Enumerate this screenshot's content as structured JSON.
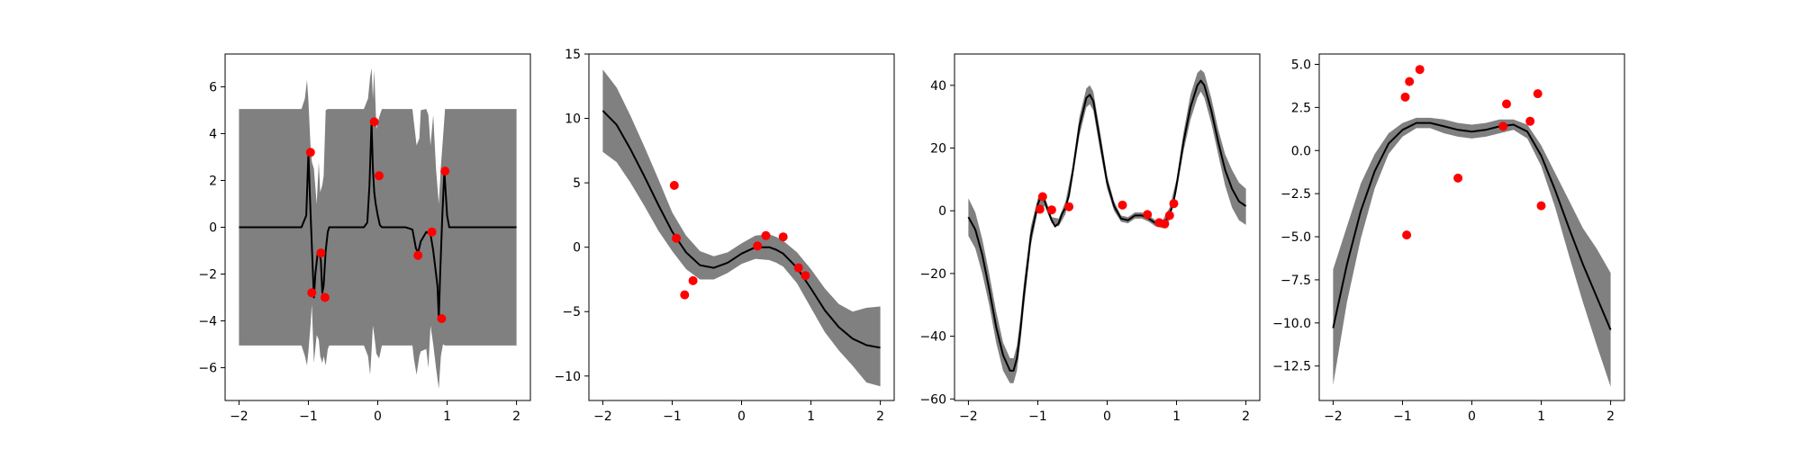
{
  "chart_data": [
    {
      "type": "line",
      "title": "",
      "xlabel": "",
      "ylabel": "",
      "xlim": [
        -2.2,
        2.2
      ],
      "ylim": [
        -7.4,
        7.4
      ],
      "xticks": [
        -2,
        -1,
        0,
        1,
        2
      ],
      "yticks": [
        -6,
        -4,
        -2,
        0,
        2,
        4,
        6
      ],
      "xtick_labels": [
        "−2",
        "−1",
        "0",
        "1",
        "2"
      ],
      "ytick_labels": [
        "−6",
        "−4",
        "−2",
        "0",
        "2",
        "4",
        "6"
      ],
      "grid": false,
      "colors": {
        "mean": "#000000",
        "band": "#808080",
        "points": "#ff0000"
      },
      "mean": {
        "x": [
          -2.0,
          -1.1,
          -1.03,
          -1.0,
          -0.98,
          -0.95,
          -0.92,
          -0.9,
          -0.87,
          -0.85,
          -0.82,
          -0.8,
          -0.78,
          -0.75,
          -0.72,
          -0.7,
          -0.68,
          -0.65,
          -0.6,
          -0.2,
          -0.15,
          -0.12,
          -0.09,
          -0.07,
          -0.05,
          -0.03,
          0.0,
          0.03,
          0.06,
          0.1,
          0.2,
          0.4,
          0.5,
          0.55,
          0.58,
          0.62,
          0.7,
          0.76,
          0.8,
          0.86,
          0.88,
          0.9,
          0.93,
          0.96,
          1.0,
          1.03,
          1.06,
          1.1,
          1.2,
          2.0
        ],
        "y": [
          0.0,
          0.0,
          0.5,
          3.2,
          1.5,
          -0.8,
          -3.0,
          -2.0,
          -1.2,
          -1.0,
          -1.4,
          -2.8,
          -2.5,
          -1.0,
          -0.2,
          0.0,
          0.0,
          0.0,
          0.0,
          0.0,
          0.2,
          1.8,
          4.5,
          2.5,
          1.5,
          1.0,
          0.5,
          0.1,
          0.0,
          0.0,
          0.0,
          0.0,
          -0.1,
          -0.9,
          -1.1,
          -0.6,
          -0.2,
          -0.3,
          -1.0,
          -2.5,
          -3.9,
          -2.0,
          0.5,
          2.4,
          0.5,
          0.0,
          0.0,
          0.0,
          0.0,
          0.0
        ]
      },
      "band": {
        "x": [
          -2.0,
          -1.1,
          -1.05,
          -1.02,
          -1.0,
          -0.97,
          -0.95,
          -0.92,
          -0.88,
          -0.85,
          -0.83,
          -0.8,
          -0.78,
          -0.75,
          -0.72,
          -0.7,
          -0.67,
          -0.6,
          -0.2,
          -0.14,
          -0.11,
          -0.09,
          -0.07,
          -0.05,
          -0.02,
          0.02,
          0.06,
          0.1,
          0.2,
          0.4,
          0.5,
          0.52,
          0.56,
          0.6,
          0.62,
          0.7,
          0.73,
          0.76,
          0.8,
          0.84,
          0.88,
          0.91,
          0.94,
          0.97,
          1.0,
          1.04,
          1.1,
          2.0
        ],
        "upper": [
          5.05,
          5.05,
          5.5,
          6.3,
          5.4,
          3.5,
          2.8,
          2.5,
          1.0,
          2.8,
          1.5,
          1.8,
          2.2,
          5.0,
          5.05,
          5.05,
          5.05,
          5.05,
          5.05,
          5.5,
          6.4,
          6.8,
          5.5,
          6.7,
          4.2,
          4.7,
          5.05,
          5.05,
          5.05,
          5.05,
          5.05,
          4.5,
          3.5,
          3.8,
          5.0,
          5.05,
          4.8,
          3.5,
          4.8,
          2.5,
          1.0,
          2.6,
          3.8,
          5.05,
          5.05,
          5.05,
          5.05,
          5.05
        ],
        "lower": [
          -5.05,
          -5.05,
          -5.5,
          -5.9,
          -5.3,
          -4.2,
          -3.3,
          -5.8,
          -4.6,
          -4.8,
          -5.5,
          -5.8,
          -5.5,
          -5.9,
          -5.2,
          -5.05,
          -5.05,
          -5.05,
          -5.05,
          -5.5,
          -6.3,
          -5.3,
          -4.2,
          -4.6,
          -5.4,
          -5.6,
          -5.05,
          -5.05,
          -5.05,
          -5.05,
          -5.05,
          -5.6,
          -6.3,
          -5.5,
          -5.3,
          -5.2,
          -6.0,
          -4.2,
          -5.0,
          -6.0,
          -6.9,
          -5.5,
          -5.0,
          -5.05,
          -5.05,
          -5.05,
          -5.05,
          -5.05
        ]
      },
      "points": {
        "x": [
          -0.97,
          -0.95,
          -0.82,
          -0.76,
          -0.05,
          0.02,
          0.58,
          0.78,
          0.92,
          0.97
        ],
        "y": [
          3.2,
          -2.8,
          -1.1,
          -3.0,
          4.5,
          2.2,
          -1.2,
          -0.2,
          -3.9,
          2.4
        ]
      }
    },
    {
      "type": "line",
      "title": "",
      "xlabel": "",
      "ylabel": "",
      "xlim": [
        -2.2,
        2.2
      ],
      "ylim": [
        -11.9,
        15.0
      ],
      "xticks": [
        -2,
        -1,
        0,
        1,
        2
      ],
      "yticks": [
        -10,
        -5,
        0,
        5,
        10,
        15
      ],
      "xtick_labels": [
        "−2",
        "−1",
        "0",
        "1",
        "2"
      ],
      "ytick_labels": [
        "−10",
        "−5",
        "0",
        "5",
        "10",
        "15"
      ],
      "grid": false,
      "colors": {
        "mean": "#000000",
        "band": "#808080",
        "points": "#ff0000"
      },
      "mean": {
        "x": [
          -2.0,
          -1.8,
          -1.6,
          -1.4,
          -1.2,
          -1.0,
          -0.8,
          -0.6,
          -0.4,
          -0.2,
          0.0,
          0.2,
          0.4,
          0.5,
          0.6,
          0.8,
          1.0,
          1.2,
          1.4,
          1.6,
          1.8,
          2.0
        ],
        "y": [
          10.6,
          9.5,
          7.6,
          5.5,
          3.3,
          1.2,
          -0.4,
          -1.4,
          -1.6,
          -1.2,
          -0.5,
          0.0,
          0.0,
          -0.2,
          -0.5,
          -1.6,
          -3.2,
          -4.9,
          -6.2,
          -7.1,
          -7.6,
          -7.8
        ]
      },
      "band": {
        "x": [
          -2.0,
          -1.8,
          -1.6,
          -1.4,
          -1.2,
          -1.0,
          -0.8,
          -0.6,
          -0.4,
          -0.2,
          0.0,
          0.2,
          0.4,
          0.5,
          0.6,
          0.8,
          1.0,
          1.2,
          1.4,
          1.6,
          1.8,
          2.0
        ],
        "upper": [
          13.8,
          12.4,
          10.2,
          7.8,
          5.3,
          2.7,
          0.9,
          -0.3,
          -0.7,
          -0.4,
          0.3,
          0.9,
          1.0,
          0.8,
          0.5,
          -0.4,
          -1.7,
          -3.2,
          -4.4,
          -5.0,
          -4.7,
          -4.6
        ],
        "lower": [
          7.4,
          6.6,
          5.0,
          3.2,
          1.3,
          -0.3,
          -1.7,
          -2.5,
          -2.5,
          -2.0,
          -1.3,
          -0.9,
          -1.0,
          -1.2,
          -1.5,
          -2.8,
          -4.7,
          -6.6,
          -8.0,
          -9.2,
          -10.5,
          -10.8
        ]
      },
      "points": {
        "x": [
          -0.97,
          -0.94,
          -0.82,
          -0.7,
          0.23,
          0.35,
          0.6,
          0.82,
          0.92
        ],
        "y": [
          4.8,
          0.7,
          -3.7,
          -2.6,
          0.1,
          0.9,
          0.8,
          -1.6,
          -2.2
        ]
      }
    },
    {
      "type": "line",
      "title": "",
      "xlabel": "",
      "ylabel": "",
      "xlim": [
        -2.2,
        2.2
      ],
      "ylim": [
        -60.5,
        50.0
      ],
      "xticks": [
        -2,
        -1,
        0,
        1,
        2
      ],
      "yticks": [
        -60,
        -40,
        -20,
        0,
        20,
        40
      ],
      "xtick_labels": [
        "−2",
        "−1",
        "0",
        "1",
        "2"
      ],
      "ytick_labels": [
        "−60",
        "−40",
        "−20",
        "0",
        "20",
        "40"
      ],
      "grid": false,
      "colors": {
        "mean": "#000000",
        "band": "#808080",
        "points": "#ff0000"
      },
      "mean": {
        "x": [
          -2.0,
          -1.9,
          -1.8,
          -1.7,
          -1.6,
          -1.5,
          -1.4,
          -1.35,
          -1.3,
          -1.25,
          -1.2,
          -1.1,
          -1.0,
          -0.95,
          -0.9,
          -0.85,
          -0.8,
          -0.75,
          -0.7,
          -0.65,
          -0.6,
          -0.55,
          -0.5,
          -0.4,
          -0.3,
          -0.25,
          -0.2,
          -0.1,
          0.0,
          0.1,
          0.2,
          0.3,
          0.4,
          0.5,
          0.6,
          0.7,
          0.8,
          0.85,
          0.9,
          0.95,
          1.0,
          1.1,
          1.2,
          1.3,
          1.35,
          1.4,
          1.5,
          1.6,
          1.7,
          1.8,
          1.9,
          2.0
        ],
        "y": [
          -2.0,
          -6.0,
          -14.0,
          -25.0,
          -37.0,
          -46.0,
          -51.0,
          -51.0,
          -47.0,
          -38.0,
          -27.0,
          -8.0,
          2.0,
          5.0,
          3.0,
          0.0,
          -3.0,
          -5.0,
          -4.0,
          -1.0,
          1.0,
          5.0,
          12.0,
          27.0,
          36.0,
          37.0,
          35.0,
          22.0,
          9.0,
          1.5,
          -2.5,
          -3.0,
          -1.5,
          -1.5,
          -2.5,
          -4.0,
          -4.5,
          -3.0,
          -1.0,
          2.0,
          8.0,
          22.0,
          33.0,
          40.0,
          41.5,
          40.0,
          32.0,
          22.0,
          13.0,
          7.0,
          3.0,
          1.5
        ]
      },
      "band": {
        "x": [
          -2.0,
          -1.9,
          -1.8,
          -1.7,
          -1.6,
          -1.5,
          -1.4,
          -1.35,
          -1.3,
          -1.25,
          -1.2,
          -1.1,
          -1.0,
          -0.9,
          -0.8,
          -0.7,
          -0.6,
          -0.5,
          -0.4,
          -0.3,
          -0.25,
          -0.2,
          -0.1,
          0.0,
          0.1,
          0.2,
          0.3,
          0.4,
          0.5,
          0.6,
          0.7,
          0.8,
          0.9,
          1.0,
          1.1,
          1.2,
          1.3,
          1.35,
          1.4,
          1.5,
          1.6,
          1.7,
          1.8,
          1.9,
          2.0
        ],
        "upper": [
          4.0,
          -0.5,
          -9.0,
          -20.0,
          -32.0,
          -42.0,
          -47.0,
          -47.0,
          -43.0,
          -34.0,
          -23.0,
          -5.0,
          4.0,
          4.5,
          -2.0,
          -2.5,
          3.0,
          14.0,
          30.0,
          39.0,
          40.0,
          38.0,
          25.0,
          11.0,
          3.0,
          -1.5,
          -2.0,
          -0.5,
          -0.5,
          -1.5,
          -3.0,
          -3.0,
          1.0,
          10.0,
          25.0,
          37.0,
          44.0,
          45.0,
          44.0,
          36.0,
          26.0,
          18.0,
          13.0,
          9.0,
          7.0
        ],
        "lower": [
          -8.0,
          -12.0,
          -20.0,
          -30.0,
          -42.0,
          -51.0,
          -55.0,
          -55.0,
          -51.0,
          -42.0,
          -31.0,
          -11.0,
          0.0,
          1.5,
          -4.0,
          -5.0,
          -1.0,
          10.0,
          24.0,
          33.0,
          34.0,
          32.0,
          19.0,
          7.0,
          0.0,
          -3.5,
          -4.0,
          -2.5,
          -2.5,
          -3.5,
          -5.0,
          -5.5,
          -3.0,
          6.0,
          19.0,
          29.0,
          36.0,
          38.0,
          36.0,
          28.0,
          18.0,
          8.0,
          1.0,
          -3.0,
          -4.5
        ]
      },
      "points": {
        "x": [
          -0.97,
          -0.93,
          -0.8,
          -0.55,
          0.22,
          0.58,
          0.75,
          0.83,
          0.9,
          0.96
        ],
        "y": [
          0.5,
          4.5,
          0.3,
          1.3,
          1.8,
          -1.2,
          -3.8,
          -4.2,
          -1.5,
          2.3
        ]
      }
    },
    {
      "type": "line",
      "title": "",
      "xlabel": "",
      "ylabel": "",
      "xlim": [
        -2.2,
        2.2
      ],
      "ylim": [
        -14.5,
        5.6
      ],
      "xticks": [
        -2,
        -1,
        0,
        1,
        2
      ],
      "yticks": [
        -12.5,
        -10.0,
        -7.5,
        -5.0,
        -2.5,
        0.0,
        2.5,
        5.0
      ],
      "xtick_labels": [
        "−2",
        "−1",
        "0",
        "1",
        "2"
      ],
      "ytick_labels": [
        "−12.5",
        "−10.0",
        "−7.5",
        "−5.0",
        "−2.5",
        "0.0",
        "2.5",
        "5.0"
      ],
      "grid": false,
      "colors": {
        "mean": "#000000",
        "band": "#808080",
        "points": "#ff0000"
      },
      "mean": {
        "x": [
          -2.0,
          -1.8,
          -1.6,
          -1.4,
          -1.2,
          -1.0,
          -0.8,
          -0.6,
          -0.4,
          -0.2,
          0.0,
          0.2,
          0.4,
          0.6,
          0.8,
          1.0,
          1.2,
          1.4,
          1.6,
          1.8,
          2.0
        ],
        "y": [
          -10.3,
          -6.6,
          -3.5,
          -1.2,
          0.4,
          1.2,
          1.6,
          1.6,
          1.4,
          1.2,
          1.1,
          1.2,
          1.4,
          1.5,
          1.1,
          -0.3,
          -2.3,
          -4.5,
          -6.6,
          -8.5,
          -10.4
        ]
      },
      "band": {
        "x": [
          -2.0,
          -1.8,
          -1.6,
          -1.4,
          -1.2,
          -1.0,
          -0.8,
          -0.6,
          -0.4,
          -0.2,
          0.0,
          0.2,
          0.4,
          0.6,
          0.8,
          1.0,
          1.2,
          1.4,
          1.6,
          1.8,
          2.0
        ],
        "upper": [
          -6.9,
          -4.4,
          -1.9,
          -0.2,
          1.0,
          1.6,
          1.9,
          1.9,
          1.8,
          1.6,
          1.5,
          1.6,
          1.8,
          1.8,
          1.5,
          0.3,
          -1.3,
          -2.9,
          -4.5,
          -5.7,
          -7.1
        ],
        "lower": [
          -13.6,
          -8.8,
          -5.1,
          -2.2,
          -0.2,
          0.8,
          1.3,
          1.3,
          1.0,
          0.8,
          0.7,
          0.8,
          1.0,
          1.2,
          0.7,
          -0.9,
          -3.3,
          -6.1,
          -8.8,
          -11.3,
          -13.7
        ]
      },
      "points": {
        "x": [
          -0.96,
          -0.94,
          -0.9,
          -0.75,
          -0.2,
          0.45,
          0.5,
          0.84,
          0.95,
          1.0
        ],
        "y": [
          3.1,
          -4.9,
          4.0,
          4.7,
          -1.6,
          1.4,
          2.7,
          1.7,
          3.3,
          -3.2
        ]
      }
    }
  ]
}
